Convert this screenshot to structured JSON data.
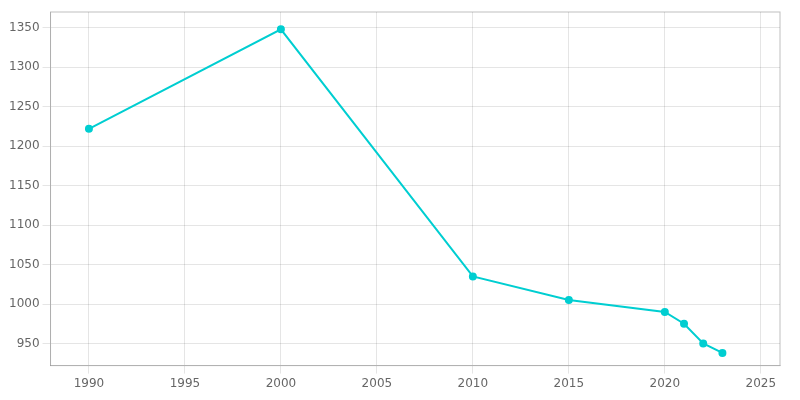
{
  "chart_data": {
    "type": "line",
    "x": [
      1990,
      2000,
      2010,
      2015,
      2020,
      2021,
      2022,
      2023
    ],
    "values": [
      1222,
      1348,
      1035,
      1005,
      990,
      975,
      950,
      938
    ],
    "color": "#00CED1",
    "marker": "circle",
    "xlim": [
      1988,
      2026
    ],
    "ylim": [
      922,
      1370
    ],
    "xticks": [
      1990,
      1995,
      2000,
      2005,
      2010,
      2015,
      2020,
      2025
    ],
    "yticks": [
      950,
      1000,
      1050,
      1100,
      1150,
      1200,
      1250,
      1300,
      1350
    ],
    "grid": true
  }
}
